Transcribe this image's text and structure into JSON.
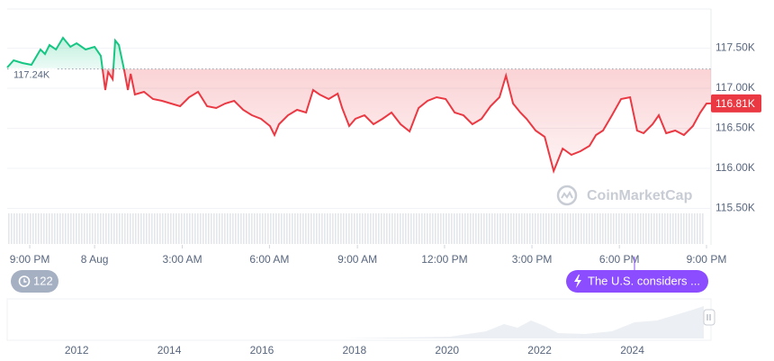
{
  "chart_data": [
    {
      "type": "line",
      "x": [
        -0.8,
        -0.57,
        -0.26,
        0.06,
        0.38,
        0.54,
        0.7,
        0.93,
        1.18,
        1.44,
        1.66,
        1.98,
        2.3,
        2.52,
        2.68,
        2.78,
        2.94,
        3.03,
        3.16,
        3.35,
        3.48,
        3.58,
        3.73,
        4.05,
        4.37,
        4.69,
        5.01,
        5.33,
        5.65,
        5.97,
        6.29,
        6.61,
        6.93,
        7.25,
        7.57,
        7.88,
        8.2,
        8.52,
        8.68,
        8.84,
        9.16,
        9.48,
        9.8,
        10.05,
        10.28,
        10.6,
        10.92,
        11.08,
        11.33,
        11.55,
        11.87,
        12.19,
        12.51,
        12.83,
        13.15,
        13.47,
        13.79,
        14.11,
        14.43,
        14.75,
        15.07,
        15.38,
        15.7,
        16.02,
        16.34,
        16.66,
        16.89,
        17.14,
        17.4,
        17.62,
        17.94,
        18.26,
        18.58,
        18.9,
        19.21,
        19.53,
        19.85,
        20.08,
        20.33,
        20.65,
        20.97,
        21.29,
        21.54,
        21.77,
        22.09,
        22.31,
        22.57,
        22.89,
        23.2,
        23.52,
        23.78,
        24.0,
        24.16
      ],
      "values": [
        117258,
        117348,
        117315,
        117292,
        117483,
        117427,
        117539,
        117483,
        117629,
        117517,
        117562,
        117483,
        117517,
        117404,
        116978,
        117202,
        117112,
        117596,
        117539,
        117225,
        116978,
        117180,
        116921,
        116955,
        116865,
        116843,
        116809,
        116775,
        116888,
        116955,
        116775,
        116753,
        116809,
        116843,
        116730,
        116663,
        116618,
        116528,
        116416,
        116551,
        116663,
        116730,
        116697,
        116978,
        116921,
        116865,
        116933,
        116753,
        116528,
        116618,
        116663,
        116551,
        116618,
        116697,
        116551,
        116461,
        116753,
        116843,
        116888,
        116865,
        116697,
        116663,
        116551,
        116618,
        116775,
        116888,
        117157,
        116809,
        116697,
        116618,
        116472,
        116393,
        115966,
        116247,
        116169,
        116213,
        116281,
        116416,
        116472,
        116663,
        116865,
        116888,
        116472,
        116438,
        116551,
        116663,
        116438,
        116472,
        116416,
        116528,
        116697,
        116809,
        116810
      ],
      "up_color": "#16c784",
      "down_color": "#ea3943",
      "baseline": {
        "value": 117240,
        "label": "117.24K"
      },
      "current_label": "116.81K",
      "xlim": [
        -0.8,
        24.16
      ],
      "xticks": [
        {
          "value": 0,
          "label": "9:00 PM"
        },
        {
          "value": 2.3,
          "label": "8 Aug"
        },
        {
          "value": 5.41,
          "label": "3:00 AM"
        },
        {
          "value": 8.5,
          "label": "6:00 AM"
        },
        {
          "value": 11.62,
          "label": "9:00 AM"
        },
        {
          "value": 14.71,
          "label": "12:00 PM"
        },
        {
          "value": 17.81,
          "label": "3:00 PM"
        },
        {
          "value": 20.91,
          "label": "6:00 PM"
        },
        {
          "value": 24.0,
          "label": "9:00 PM"
        }
      ],
      "ylim": [
        115000,
        118000
      ],
      "yticks": [
        {
          "value": 117500,
          "label": "117.50K"
        },
        {
          "value": 117000,
          "label": "117.00K"
        },
        {
          "value": 116500,
          "label": "116.50K"
        },
        {
          "value": 116000,
          "label": "116.00K"
        },
        {
          "value": 115500,
          "label": "115.50K"
        }
      ],
      "grid": true,
      "watermark": "CoinMarketCap",
      "news_count": 122,
      "annotation": "The U.S. considers ..."
    },
    {
      "type": "navigator",
      "xlim": [
        2010.5,
        2025.7
      ],
      "xticks": [
        2012,
        2014,
        2016,
        2018,
        2020,
        2022,
        2024
      ]
    }
  ]
}
